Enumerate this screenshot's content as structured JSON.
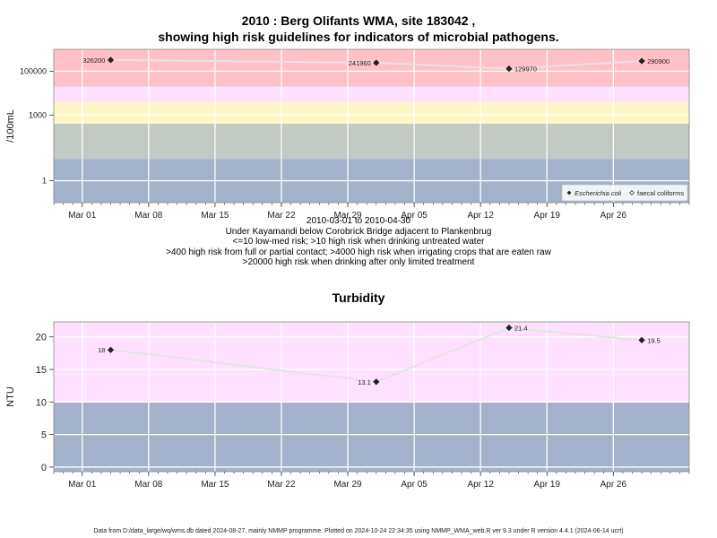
{
  "chart_data": [
    {
      "type": "line",
      "title_lines": [
        "2010 : Berg Olifants WMA, site 183042 ,",
        "showing high risk guidelines for indicators of microbial pathogens."
      ],
      "ylabel": "/100mL",
      "y_scale": "log10",
      "ylim": [
        0.1,
        1000000
      ],
      "y_ticks": [
        {
          "value": 1,
          "label": "1"
        },
        {
          "value": 1000,
          "label": "1000"
        },
        {
          "value": 100000,
          "label": "100000"
        }
      ],
      "x_ticks": [
        "Mar 01",
        "Mar 08",
        "Mar 15",
        "Mar 22",
        "Mar 29",
        "Apr 05",
        "Apr 12",
        "Apr 19",
        "Apr 26"
      ],
      "xlim": [
        "2010-02-26",
        "2010-05-04"
      ],
      "bands": [
        {
          "from": 0.1,
          "to": 10,
          "color": "#a3b2ca"
        },
        {
          "from": 10,
          "to": 400,
          "color": "#c3c9c3"
        },
        {
          "from": 400,
          "to": 4000,
          "color": "#fff6c8"
        },
        {
          "from": 4000,
          "to": 20000,
          "color": "#ffe1ff"
        },
        {
          "from": 20000,
          "to": 1000000,
          "color": "#ffc0c8"
        }
      ],
      "series": [
        {
          "name": "Escherichia coli",
          "marker": "filled-diamond",
          "points": [
            {
              "x": "2010-03-04",
              "y": 326200,
              "label": "326200"
            },
            {
              "x": "2010-04-01",
              "y": 241960,
              "label": "241960"
            },
            {
              "x": "2010-04-15",
              "y": 129970,
              "label": "129970"
            },
            {
              "x": "2010-04-29",
              "y": 290900,
              "label": "290900"
            }
          ]
        },
        {
          "name": "faecal coliforms",
          "marker": "open-diamond",
          "points": []
        }
      ],
      "legend_position": "bottom-right",
      "subtitle_lines": [
        "2010-03-01 to 2010-04-30",
        "Under Kayamandi below Corobrick Bridge adjacent to Plankenbrug",
        "<=10 low-med risk; >10 high risk when drinking untreated water",
        ">400 high risk from full or partial contact; >4000 high risk when irrigating crops that are eaten raw",
        ">20000 high risk when drinking after only limited treatment"
      ]
    },
    {
      "type": "line",
      "title": "Turbidity",
      "ylabel": "NTU",
      "ylim": [
        -0.7,
        22.3
      ],
      "y_ticks": [
        {
          "value": 0,
          "label": "0"
        },
        {
          "value": 5,
          "label": "5"
        },
        {
          "value": 10,
          "label": "10"
        },
        {
          "value": 15,
          "label": "15"
        },
        {
          "value": 20,
          "label": "20"
        }
      ],
      "x_ticks": [
        "Mar 01",
        "Mar 08",
        "Mar 15",
        "Mar 22",
        "Mar 29",
        "Apr 05",
        "Apr 12",
        "Apr 19",
        "Apr 26"
      ],
      "xlim": [
        "2010-02-26",
        "2010-05-04"
      ],
      "bands": [
        {
          "from": -0.7,
          "to": 10,
          "color": "#a3b2ca"
        },
        {
          "from": 10,
          "to": 22.3,
          "color": "#ffe1ff"
        }
      ],
      "series": [
        {
          "name": "",
          "marker": "filled-diamond",
          "points": [
            {
              "x": "2010-03-04",
              "y": 18,
              "label": "18"
            },
            {
              "x": "2010-04-01",
              "y": 13.1,
              "label": "13.1"
            },
            {
              "x": "2010-04-15",
              "y": 21.4,
              "label": "21.4"
            },
            {
              "x": "2010-04-29",
              "y": 19.5,
              "label": "19.5"
            }
          ]
        }
      ]
    }
  ],
  "footer": "Data from D:/data_large/wq/wms.db dated 2024-08-27, mainly NMMP programme. Plotted on 2024-10-24 22:34:35 using NMMP_WMA_web.R ver 9.3 under R version 4.4.1 (2024-06-14 ucrt)"
}
